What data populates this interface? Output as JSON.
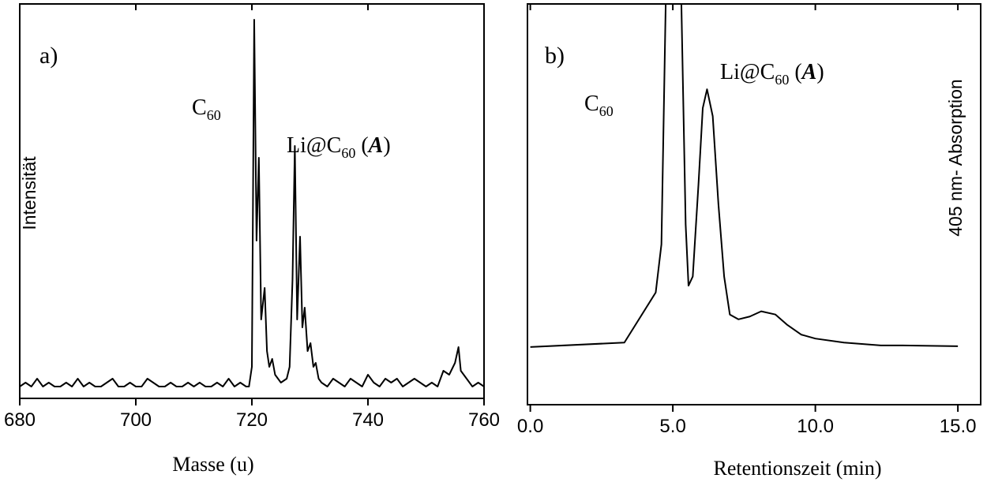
{
  "chart_data": [
    {
      "type": "line",
      "panel_label": "a)",
      "xlabel": "Masse (u)",
      "ylabel": "Intensität",
      "ylabel_side": "left",
      "color": "#000000",
      "xlim": [
        680,
        760
      ],
      "xticks": [
        680,
        700,
        720,
        740,
        760
      ],
      "ylim": [
        0,
        100
      ],
      "x": [
        680,
        681,
        682,
        683,
        684,
        685,
        686,
        687,
        688,
        689,
        690,
        691,
        692,
        693,
        694,
        695,
        696,
        697,
        698,
        699,
        700,
        701,
        702,
        703,
        704,
        705,
        706,
        707,
        708,
        709,
        710,
        711,
        712,
        713,
        714,
        715,
        716,
        717,
        718,
        719,
        719.5,
        720,
        720.4,
        720.8,
        721.2,
        721.6,
        722.2,
        722.6,
        723,
        723.5,
        724,
        725,
        726,
        726.5,
        727,
        727.4,
        727.8,
        728.3,
        728.7,
        729.1,
        729.6,
        730.1,
        730.6,
        731,
        731.5,
        732,
        733,
        734,
        735,
        736,
        737,
        738,
        739,
        740,
        741,
        742,
        743,
        744,
        745,
        746,
        747,
        748,
        749,
        750,
        751,
        752,
        753,
        754,
        755,
        755.6,
        756,
        757,
        758,
        759,
        760
      ],
      "values": [
        3,
        4,
        3,
        5,
        3,
        4,
        3,
        3,
        4,
        3,
        5,
        3,
        4,
        3,
        3,
        4,
        5,
        3,
        3,
        4,
        3,
        3,
        5,
        4,
        3,
        3,
        4,
        3,
        3,
        4,
        3,
        4,
        3,
        3,
        4,
        3,
        5,
        3,
        4,
        3,
        3,
        8,
        96,
        40,
        61,
        20,
        28,
        12,
        8,
        10,
        6,
        4,
        5,
        8,
        30,
        64,
        20,
        41,
        18,
        23,
        12,
        14,
        8,
        9,
        5,
        4,
        3,
        5,
        4,
        3,
        5,
        4,
        3,
        6,
        4,
        3,
        5,
        4,
        5,
        3,
        4,
        5,
        4,
        3,
        4,
        3,
        7,
        6,
        9,
        13,
        7,
        5,
        3,
        4,
        3
      ],
      "annotations": [
        {
          "parts": [
            {
              "t": "C"
            },
            {
              "t": "60",
              "style": "sub"
            }
          ]
        },
        {
          "parts": [
            {
              "t": "Li@C"
            },
            {
              "t": "60",
              "style": "sub"
            },
            {
              "t": " ("
            },
            {
              "t": "A",
              "style": "bold-italic"
            },
            {
              "t": ")"
            }
          ]
        }
      ]
    },
    {
      "type": "line",
      "panel_label": "b)",
      "xlabel": "Retentionszeit (min)",
      "ylabel": "405 nm- Absorption",
      "ylabel_side": "right",
      "color": "#000000",
      "xlim": [
        -0.1,
        15.8
      ],
      "xticks": [
        {
          "value": 0,
          "label": "0.0"
        },
        {
          "value": 5,
          "label": "5.0"
        },
        {
          "value": 10,
          "label": "10.0"
        },
        {
          "value": 15,
          "label": "15.0"
        }
      ],
      "ylim": [
        0,
        100
      ],
      "x": [
        0,
        3.3,
        4.4,
        4.6,
        4.75,
        5.0,
        5.3,
        5.45,
        5.55,
        5.7,
        5.9,
        6.05,
        6.2,
        6.4,
        6.6,
        6.8,
        7.0,
        7.3,
        7.7,
        8.1,
        8.6,
        9.0,
        9.5,
        10,
        11,
        12.3,
        13,
        15
      ],
      "values": [
        14.4,
        15.5,
        28,
        40,
        100,
        null,
        100,
        45,
        29.7,
        32,
        55,
        74,
        78.7,
        72,
        50,
        32,
        22.5,
        21.3,
        22,
        23.3,
        22.5,
        20,
        17.5,
        16.5,
        15.5,
        14.8,
        14.8,
        14.6
      ],
      "annotations": [
        {
          "parts": [
            {
              "t": "C"
            },
            {
              "t": "60",
              "style": "sub"
            }
          ]
        },
        {
          "parts": [
            {
              "t": "Li@C"
            },
            {
              "t": "60",
              "style": "sub"
            },
            {
              "t": " ("
            },
            {
              "t": "A",
              "style": "bold-italic"
            },
            {
              "t": ")"
            }
          ]
        }
      ]
    }
  ]
}
